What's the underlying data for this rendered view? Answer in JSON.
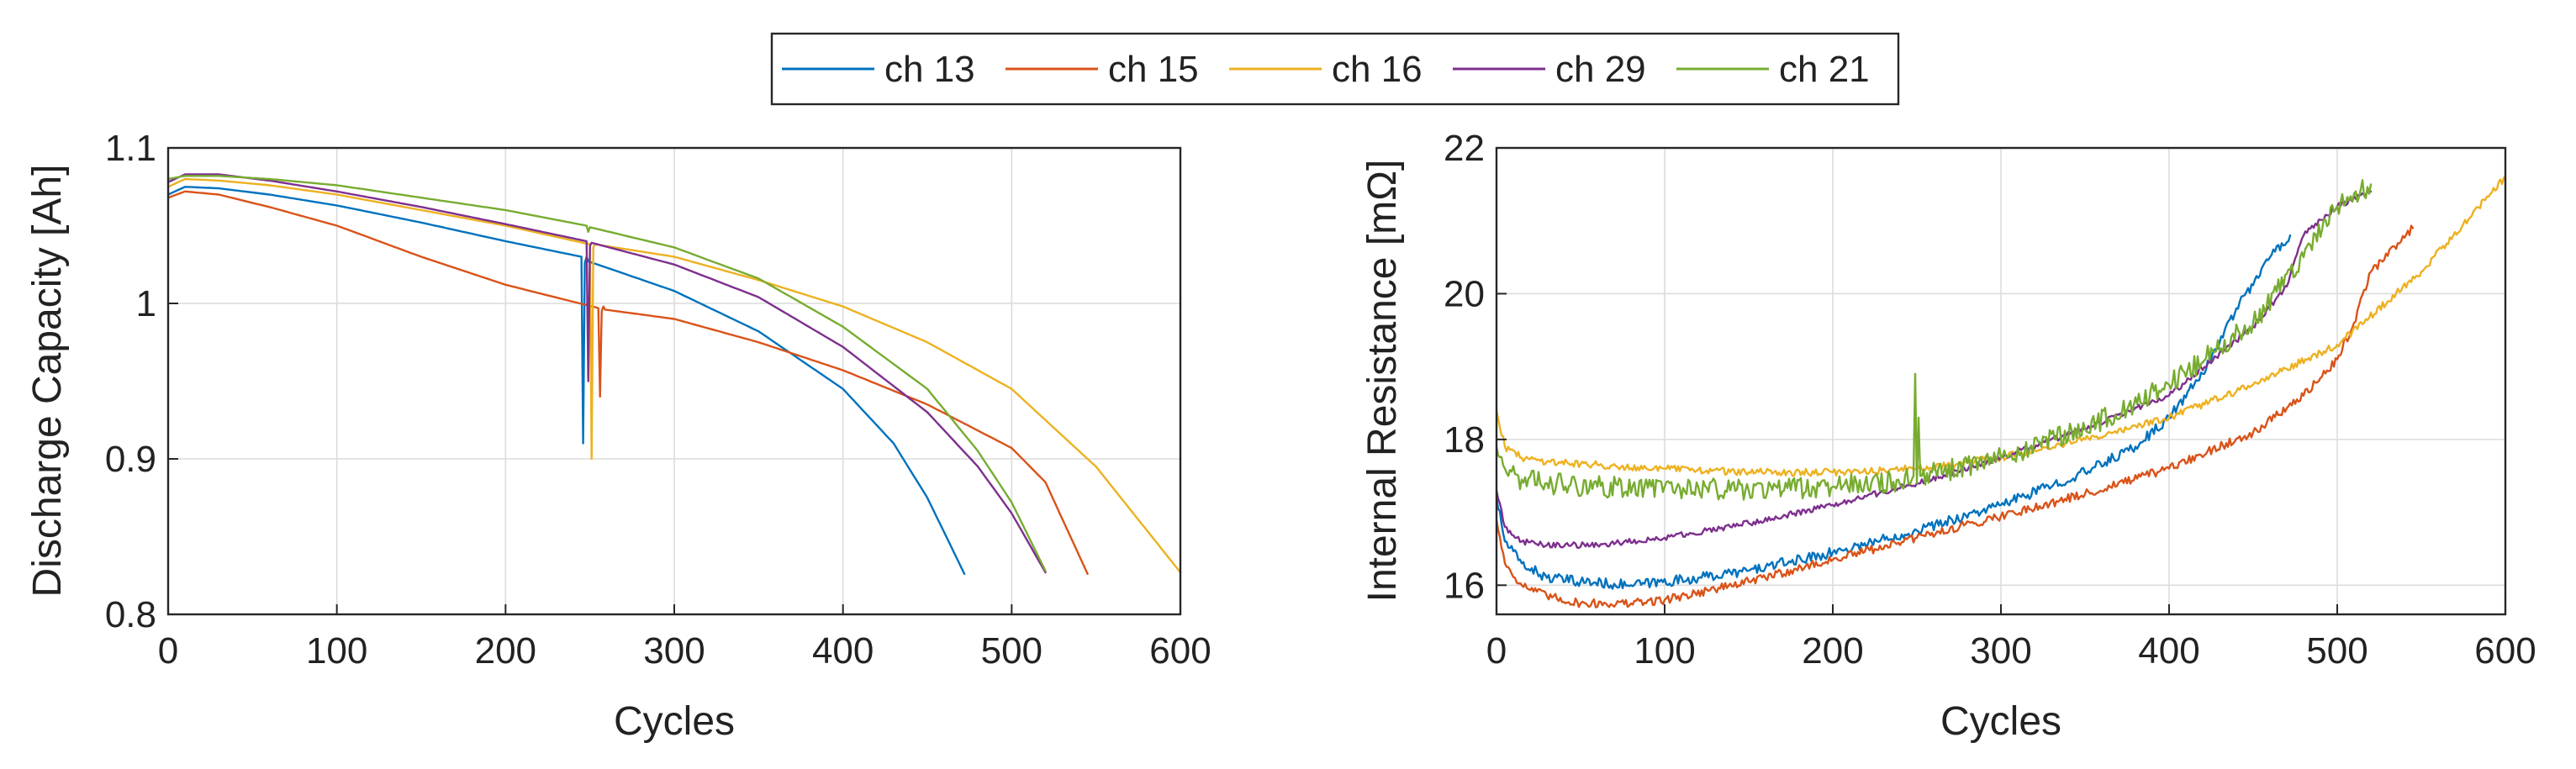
{
  "legend": {
    "entries": [
      {
        "label": "ch 13",
        "color": "#0072BD"
      },
      {
        "label": "ch 15",
        "color": "#D95319"
      },
      {
        "label": "ch 16",
        "color": "#EDB120"
      },
      {
        "label": "ch 29",
        "color": "#7E2F8E"
      },
      {
        "label": "ch 21",
        "color": "#77AC30"
      }
    ]
  },
  "chart_data": [
    {
      "type": "line",
      "title": "",
      "xlabel": "Cycles",
      "ylabel": "Discharge Capacity [Ah]",
      "xlim": [
        0,
        600
      ],
      "ylim": [
        0.8,
        1.1
      ],
      "xticks": [
        0,
        100,
        200,
        300,
        400,
        500,
        600
      ],
      "yticks": [
        0.8,
        0.9,
        1,
        1.1
      ],
      "ytick_labels": [
        "0.8",
        "0.9",
        "1",
        "1.1"
      ],
      "grid": true,
      "series": [
        {
          "name": "ch 13",
          "color": "#0072BD",
          "x": [
            0,
            10,
            30,
            60,
            100,
            150,
            200,
            245,
            246,
            247,
            248,
            249,
            260,
            300,
            350,
            400,
            430,
            450,
            472
          ],
          "y": [
            1.07,
            1.075,
            1.074,
            1.07,
            1.063,
            1.052,
            1.04,
            1.03,
            0.91,
            1.026,
            1.03,
            1.027,
            1.023,
            1.008,
            0.982,
            0.945,
            0.91,
            0.875,
            0.826
          ]
        },
        {
          "name": "ch 15",
          "color": "#D95319",
          "x": [
            0,
            10,
            30,
            60,
            100,
            150,
            200,
            255,
            256,
            257,
            258,
            259,
            300,
            350,
            400,
            450,
            500,
            520,
            545
          ],
          "y": [
            1.068,
            1.072,
            1.07,
            1.062,
            1.05,
            1.03,
            1.012,
            0.997,
            0.94,
            0.995,
            0.998,
            0.996,
            0.99,
            0.975,
            0.957,
            0.935,
            0.907,
            0.885,
            0.826
          ]
        },
        {
          "name": "ch 16",
          "color": "#EDB120",
          "x": [
            0,
            10,
            30,
            60,
            100,
            150,
            200,
            250,
            251,
            252,
            253,
            300,
            350,
            400,
            450,
            500,
            550,
            600
          ],
          "y": [
            1.075,
            1.08,
            1.079,
            1.076,
            1.07,
            1.06,
            1.05,
            1.038,
            0.9,
            1.036,
            1.038,
            1.03,
            1.015,
            0.998,
            0.975,
            0.945,
            0.895,
            0.827
          ]
        },
        {
          "name": "ch 29",
          "color": "#7E2F8E",
          "x": [
            0,
            10,
            30,
            60,
            100,
            150,
            200,
            248,
            249,
            250,
            251,
            300,
            350,
            400,
            450,
            480,
            500,
            520
          ],
          "y": [
            1.078,
            1.083,
            1.083,
            1.079,
            1.072,
            1.062,
            1.051,
            1.04,
            0.95,
            1.037,
            1.039,
            1.025,
            1.004,
            0.972,
            0.93,
            0.895,
            0.865,
            0.827
          ]
        },
        {
          "name": "ch 21",
          "color": "#77AC30",
          "x": [
            0,
            10,
            30,
            60,
            100,
            150,
            200,
            248,
            249,
            250,
            300,
            350,
            400,
            450,
            480,
            500,
            520
          ],
          "y": [
            1.08,
            1.082,
            1.082,
            1.08,
            1.076,
            1.068,
            1.06,
            1.05,
            1.046,
            1.049,
            1.036,
            1.016,
            0.985,
            0.945,
            0.905,
            0.872,
            0.828
          ]
        }
      ]
    },
    {
      "type": "line",
      "title": "",
      "xlabel": "Cycles",
      "ylabel": "Internal Resistance [mΩ]",
      "xlim": [
        0,
        600
      ],
      "ylim": [
        15.6,
        22
      ],
      "xticks": [
        0,
        100,
        200,
        300,
        400,
        500,
        600
      ],
      "yticks": [
        16,
        18,
        20,
        22
      ],
      "ytick_labels": [
        "16",
        "18",
        "20",
        "22"
      ],
      "grid": true,
      "series": [
        {
          "name": "ch 13",
          "color": "#0072BD",
          "noise": 0.07,
          "x": [
            0,
            5,
            15,
            30,
            50,
            80,
            120,
            150,
            200,
            250,
            300,
            350,
            380,
            400,
            420,
            440,
            460,
            472
          ],
          "y": [
            17.2,
            16.6,
            16.3,
            16.1,
            16.05,
            16.0,
            16.1,
            16.2,
            16.45,
            16.75,
            17.1,
            17.55,
            17.9,
            18.3,
            18.9,
            19.8,
            20.5,
            20.8
          ]
        },
        {
          "name": "ch 15",
          "color": "#D95319",
          "noise": 0.06,
          "x": [
            0,
            5,
            15,
            30,
            50,
            80,
            100,
            150,
            200,
            250,
            300,
            350,
            400,
            450,
            480,
            500,
            510,
            520,
            545
          ],
          "y": [
            16.9,
            16.3,
            16.0,
            15.85,
            15.75,
            15.75,
            15.8,
            16.05,
            16.35,
            16.65,
            16.95,
            17.25,
            17.6,
            18.1,
            18.6,
            19.1,
            19.6,
            20.3,
            20.9
          ]
        },
        {
          "name": "ch 16",
          "color": "#EDB120",
          "noise": 0.05,
          "x": [
            0,
            5,
            15,
            30,
            60,
            100,
            150,
            200,
            250,
            300,
            350,
            400,
            450,
            500,
            550,
            600
          ],
          "y": [
            18.4,
            17.9,
            17.75,
            17.7,
            17.65,
            17.6,
            17.55,
            17.55,
            17.6,
            17.75,
            18.0,
            18.3,
            18.75,
            19.3,
            20.3,
            21.6
          ]
        },
        {
          "name": "ch 29",
          "color": "#7E2F8E",
          "noise": 0.04,
          "x": [
            0,
            5,
            15,
            30,
            60,
            100,
            150,
            200,
            250,
            300,
            350,
            400,
            450,
            470,
            480,
            500,
            520
          ],
          "y": [
            17.3,
            16.8,
            16.6,
            16.55,
            16.55,
            16.65,
            16.85,
            17.1,
            17.4,
            17.75,
            18.15,
            18.6,
            19.55,
            20.1,
            20.8,
            21.2,
            21.4
          ]
        },
        {
          "name": "ch 21",
          "color": "#77AC30",
          "noise": 0.15,
          "x": [
            0,
            5,
            15,
            30,
            60,
            100,
            150,
            200,
            247,
            248,
            249,
            250,
            251,
            252,
            253,
            300,
            350,
            400,
            450,
            480,
            500,
            520
          ],
          "y": [
            17.9,
            17.6,
            17.45,
            17.4,
            17.35,
            17.35,
            17.3,
            17.35,
            17.45,
            17.5,
            18.9,
            17.4,
            18.3,
            17.5,
            17.5,
            17.75,
            18.15,
            18.75,
            19.6,
            20.5,
            21.2,
            21.5
          ]
        }
      ]
    }
  ]
}
